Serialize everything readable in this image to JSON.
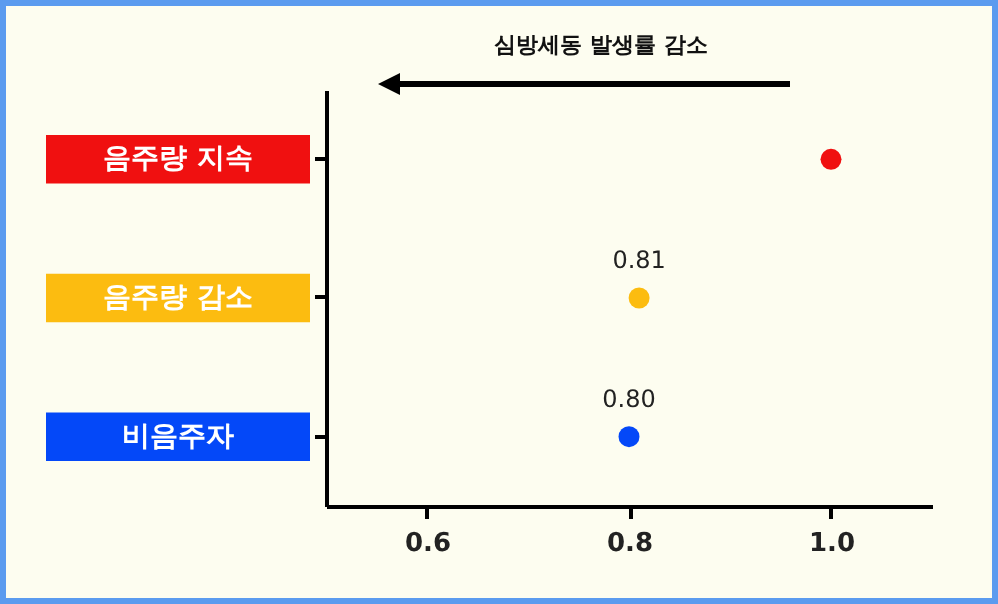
{
  "chart_data": {
    "type": "scatter",
    "orientation": "horizontal",
    "annotations": [
      "심방세동 발생률 감소"
    ],
    "categories": [
      "음주량 지속",
      "음주량 감소",
      "비음주자"
    ],
    "values": [
      1.0,
      0.81,
      0.8
    ],
    "colors": [
      "#f01010",
      "#fcbc10",
      "#0448f8"
    ],
    "value_labels": [
      null,
      "0.81",
      "0.80"
    ],
    "xlim": [
      0.5,
      1.1
    ],
    "xticks": [
      0.6,
      0.8,
      {
        "value": 1.0,
        "label": "1.0"
      }
    ],
    "marker": "circle"
  }
}
